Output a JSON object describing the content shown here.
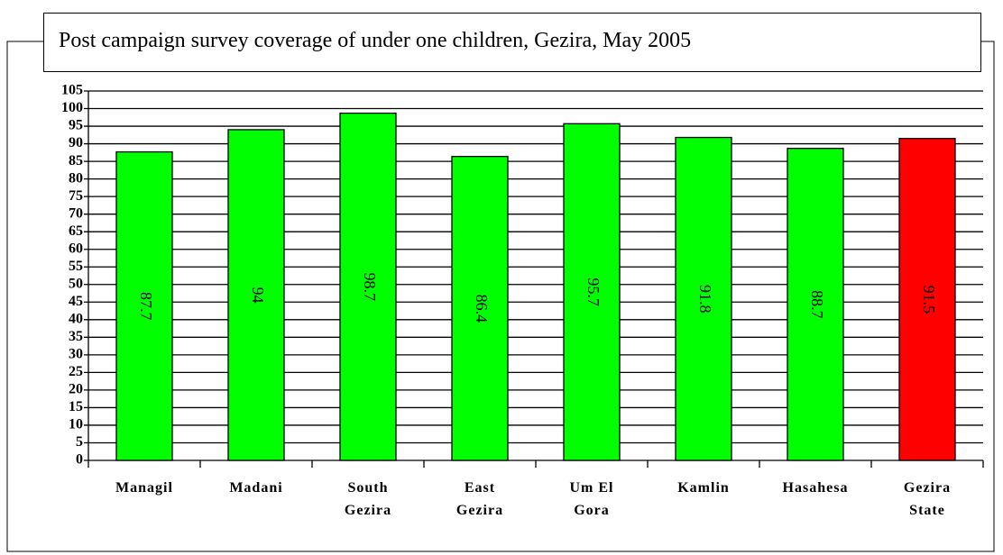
{
  "chart_data": {
    "type": "bar",
    "title": "Post campaign survey coverage of under one children, Gezira, May 2005",
    "categories": [
      "Managil",
      "Madani",
      "South Gezira",
      "East Gezira",
      "Um El Gora",
      "Kamlin",
      "Hasahesa",
      "Gezira State"
    ],
    "values": [
      87.7,
      94,
      98.7,
      86.4,
      95.7,
      91.8,
      88.7,
      91.5
    ],
    "colors": [
      "#00ff00",
      "#00ff00",
      "#00ff00",
      "#00ff00",
      "#00ff00",
      "#00ff00",
      "#00ff00",
      "#ff0000"
    ],
    "ylim": [
      0,
      105
    ],
    "yticks": [
      0,
      5,
      10,
      15,
      20,
      25,
      30,
      35,
      40,
      45,
      50,
      55,
      60,
      65,
      70,
      75,
      80,
      85,
      90,
      95,
      100,
      105
    ],
    "grid": true
  }
}
